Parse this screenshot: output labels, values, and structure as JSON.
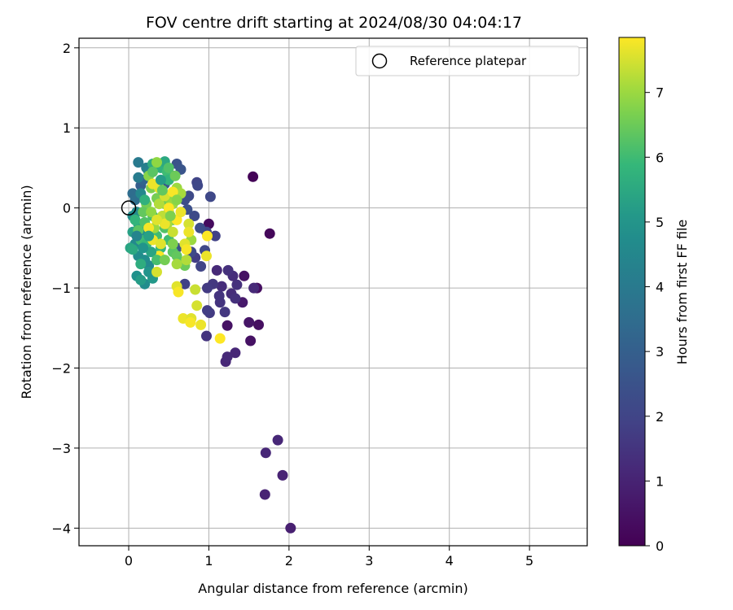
{
  "chart_data": {
    "type": "scatter",
    "title": "FOV centre drift starting at 2024/08/30 04:04:17",
    "xlabel": "Angular distance from reference (arcmin)",
    "ylabel": "Rotation from reference (arcmin)",
    "xlim": [
      -0.62,
      5.72
    ],
    "ylim": [
      -4.22,
      2.12
    ],
    "xticks": [
      0,
      1,
      2,
      3,
      4,
      5
    ],
    "yticks": [
      -4,
      -3,
      -2,
      -1,
      0,
      1,
      2
    ],
    "grid": true,
    "colormap": "viridis",
    "colorbar": {
      "label": "Hours from first FF file",
      "min": 0,
      "max": 7.85,
      "ticks": [
        0,
        1,
        2,
        3,
        4,
        5,
        6,
        7
      ]
    },
    "legend": {
      "placement": "top-right",
      "entries": [
        {
          "label": "Reference platepar",
          "marker": "open-circle"
        }
      ]
    },
    "reference_point": {
      "x": 0,
      "y": 0
    },
    "points": [
      [
        1.55,
        0.39,
        0.1
      ],
      [
        1.76,
        -0.32,
        0.2
      ],
      [
        1.0,
        -0.2,
        0.3
      ],
      [
        1.6,
        -1.0,
        0.4
      ],
      [
        1.62,
        -1.46,
        0.4
      ],
      [
        1.52,
        -1.66,
        0.5
      ],
      [
        1.5,
        -1.43,
        0.6
      ],
      [
        1.44,
        -0.85,
        0.5
      ],
      [
        1.42,
        -1.18,
        0.7
      ],
      [
        1.23,
        -1.47,
        0.5
      ],
      [
        2.02,
        -4.0,
        0.9
      ],
      [
        1.7,
        -3.58,
        1.0
      ],
      [
        1.92,
        -3.34,
        1.0
      ],
      [
        1.71,
        -3.06,
        1.1
      ],
      [
        1.86,
        -2.9,
        1.1
      ],
      [
        1.33,
        -1.81,
        1.1
      ],
      [
        1.21,
        -1.92,
        1.1
      ],
      [
        1.23,
        -1.86,
        1.2
      ],
      [
        1.1,
        -0.78,
        1.2
      ],
      [
        1.16,
        -0.98,
        1.3
      ],
      [
        1.28,
        -1.07,
        1.3
      ],
      [
        1.35,
        -0.96,
        1.4
      ],
      [
        1.3,
        -0.85,
        1.3
      ],
      [
        1.24,
        -0.78,
        1.4
      ],
      [
        1.13,
        -1.1,
        1.5
      ],
      [
        1.2,
        -1.3,
        1.6
      ],
      [
        1.14,
        -1.18,
        1.5
      ],
      [
        1.05,
        -0.95,
        1.6
      ],
      [
        1.56,
        -1.0,
        1.2
      ],
      [
        1.33,
        -1.13,
        1.4
      ],
      [
        1.01,
        -1.31,
        1.7
      ],
      [
        0.98,
        -1.28,
        1.8
      ],
      [
        0.97,
        -1.6,
        1.5
      ],
      [
        0.98,
        -1.0,
        1.7
      ],
      [
        0.7,
        -0.95,
        1.9
      ],
      [
        1.08,
        -0.35,
        1.9
      ],
      [
        0.97,
        -0.3,
        2.0
      ],
      [
        0.95,
        -0.53,
        2.1
      ],
      [
        0.83,
        -0.62,
        1.8
      ],
      [
        0.9,
        -0.73,
        2.0
      ],
      [
        0.85,
        0.32,
        2.0
      ],
      [
        0.86,
        0.28,
        2.1
      ],
      [
        0.75,
        0.15,
        2.2
      ],
      [
        0.7,
        0.1,
        2.3
      ],
      [
        1.02,
        0.14,
        2.1
      ],
      [
        0.82,
        -0.1,
        2.2
      ],
      [
        0.89,
        -0.25,
        2.3
      ],
      [
        0.78,
        -0.55,
        2.2
      ],
      [
        0.6,
        0.55,
        2.5
      ],
      [
        0.65,
        0.48,
        2.6
      ],
      [
        0.73,
        -0.02,
        2.4
      ],
      [
        0.6,
        -0.5,
        2.5
      ],
      [
        0.55,
        0.4,
        2.8
      ],
      [
        0.45,
        0.3,
        2.7
      ],
      [
        0.15,
        0.28,
        3.0
      ],
      [
        0.18,
        0.35,
        3.2
      ],
      [
        0.05,
        0.18,
        3.5
      ],
      [
        0.08,
        0.1,
        3.6
      ],
      [
        0.12,
        0.57,
        4.0
      ],
      [
        0.22,
        0.5,
        4.2
      ],
      [
        0.25,
        0.45,
        4.3
      ],
      [
        0.12,
        0.38,
        4.1
      ],
      [
        0.15,
        0.18,
        4.5
      ],
      [
        0.1,
        -0.05,
        4.6
      ],
      [
        0.05,
        -0.1,
        4.7
      ],
      [
        0.2,
        -0.3,
        4.8
      ],
      [
        0.08,
        -0.45,
        4.6
      ],
      [
        0.12,
        -0.6,
        4.7
      ],
      [
        0.2,
        -0.65,
        4.8
      ],
      [
        0.25,
        -0.72,
        4.6
      ],
      [
        0.1,
        -0.85,
        4.9
      ],
      [
        0.2,
        -0.95,
        4.7
      ],
      [
        0.3,
        -0.88,
        5.1
      ],
      [
        0.25,
        -0.8,
        5.0
      ],
      [
        0.15,
        -0.9,
        5.2
      ],
      [
        0.05,
        -0.3,
        5.3
      ],
      [
        0.12,
        -0.2,
        5.5
      ],
      [
        0.02,
        -0.5,
        5.4
      ],
      [
        0.05,
        -0.52,
        5.5
      ],
      [
        0.3,
        0.55,
        5.6
      ],
      [
        0.4,
        0.5,
        5.7
      ],
      [
        0.45,
        0.58,
        5.5
      ],
      [
        0.48,
        0.45,
        6.0
      ],
      [
        0.5,
        0.35,
        5.8
      ],
      [
        0.08,
        -0.15,
        5.8
      ],
      [
        0.15,
        -0.4,
        6.0
      ],
      [
        0.22,
        -0.45,
        5.9
      ],
      [
        0.3,
        -0.1,
        6.1
      ],
      [
        0.35,
        -0.35,
        6.0
      ],
      [
        0.4,
        -0.5,
        5.9
      ],
      [
        0.45,
        -0.25,
        6.2
      ],
      [
        0.5,
        -0.4,
        6.0
      ],
      [
        0.55,
        -0.55,
        6.3
      ],
      [
        0.6,
        -0.6,
        6.4
      ],
      [
        0.65,
        -0.68,
        6.3
      ],
      [
        0.7,
        -0.72,
        6.5
      ],
      [
        0.55,
        -0.15,
        6.4
      ],
      [
        0.45,
        0.05,
        6.5
      ],
      [
        0.35,
        0.12,
        6.6
      ],
      [
        0.28,
        0.25,
        6.7
      ],
      [
        0.22,
        0.05,
        6.6
      ],
      [
        0.18,
        -0.05,
        6.4
      ],
      [
        0.12,
        -0.28,
        6.3
      ],
      [
        0.2,
        -0.18,
        6.2
      ],
      [
        0.25,
        0.4,
        6.8
      ],
      [
        0.35,
        0.57,
        6.9
      ],
      [
        0.3,
        0.45,
        6.3
      ],
      [
        0.52,
        0.1,
        6.9
      ],
      [
        0.6,
        0.25,
        7.0
      ],
      [
        0.65,
        0.18,
        7.1
      ],
      [
        0.55,
        0.05,
        7.0
      ],
      [
        0.5,
        -0.05,
        7.2
      ],
      [
        0.48,
        -0.2,
        7.1
      ],
      [
        0.42,
        -0.1,
        7.3
      ],
      [
        0.38,
        0.05,
        7.2
      ],
      [
        0.32,
        -0.25,
        7.0
      ],
      [
        0.28,
        -0.05,
        6.9
      ],
      [
        0.6,
        -0.7,
        7.1
      ],
      [
        0.72,
        -0.65,
        7.2
      ],
      [
        0.78,
        -0.4,
        7.0
      ],
      [
        0.55,
        -0.3,
        7.4
      ],
      [
        0.45,
        0.15,
        7.5
      ],
      [
        0.38,
        0.25,
        7.6
      ],
      [
        0.3,
        0.3,
        7.7
      ],
      [
        0.55,
        0.2,
        7.8
      ],
      [
        0.5,
        0.0,
        7.85
      ],
      [
        0.45,
        -0.2,
        7.7
      ],
      [
        0.35,
        -0.15,
        7.6
      ],
      [
        0.25,
        -0.25,
        7.8
      ],
      [
        0.3,
        -0.4,
        7.7
      ],
      [
        0.4,
        -0.45,
        7.6
      ],
      [
        0.35,
        -0.8,
        7.5
      ],
      [
        0.38,
        -0.6,
        7.8
      ],
      [
        0.6,
        -0.15,
        7.85
      ],
      [
        0.65,
        -0.05,
        7.7
      ],
      [
        0.7,
        -0.45,
        7.6
      ],
      [
        0.75,
        -0.2,
        7.5
      ],
      [
        0.75,
        -0.3,
        7.7
      ],
      [
        0.72,
        -0.52,
        7.8
      ],
      [
        0.98,
        -0.35,
        7.85
      ],
      [
        0.97,
        -0.6,
        7.7
      ],
      [
        0.83,
        -1.02,
        7.4
      ],
      [
        0.6,
        -0.98,
        7.6
      ],
      [
        0.62,
        -1.05,
        7.8
      ],
      [
        0.85,
        -1.22,
        7.5
      ],
      [
        0.68,
        -1.38,
        7.7
      ],
      [
        0.78,
        -1.38,
        7.6
      ],
      [
        0.77,
        -1.43,
        7.8
      ],
      [
        0.9,
        -1.46,
        7.7
      ],
      [
        1.14,
        -1.63,
        7.85
      ],
      [
        0.42,
        0.22,
        6.4
      ],
      [
        0.28,
        -0.55,
        5.4
      ],
      [
        0.18,
        -0.5,
        5.0
      ],
      [
        0.1,
        -0.35,
        4.4
      ],
      [
        0.4,
        0.35,
        5.2
      ],
      [
        0.55,
        -0.45,
        6.7
      ],
      [
        0.6,
        0.1,
        6.8
      ],
      [
        0.2,
        0.1,
        5.7
      ],
      [
        0.35,
        -0.65,
        6.1
      ],
      [
        0.45,
        -0.65,
        6.6
      ],
      [
        0.5,
        0.5,
        6.2
      ],
      [
        0.58,
        0.4,
        6.5
      ],
      [
        0.15,
        -0.7,
        5.6
      ],
      [
        0.25,
        -0.35,
        5.3
      ],
      [
        0.52,
        -0.1,
        6.7
      ]
    ]
  }
}
